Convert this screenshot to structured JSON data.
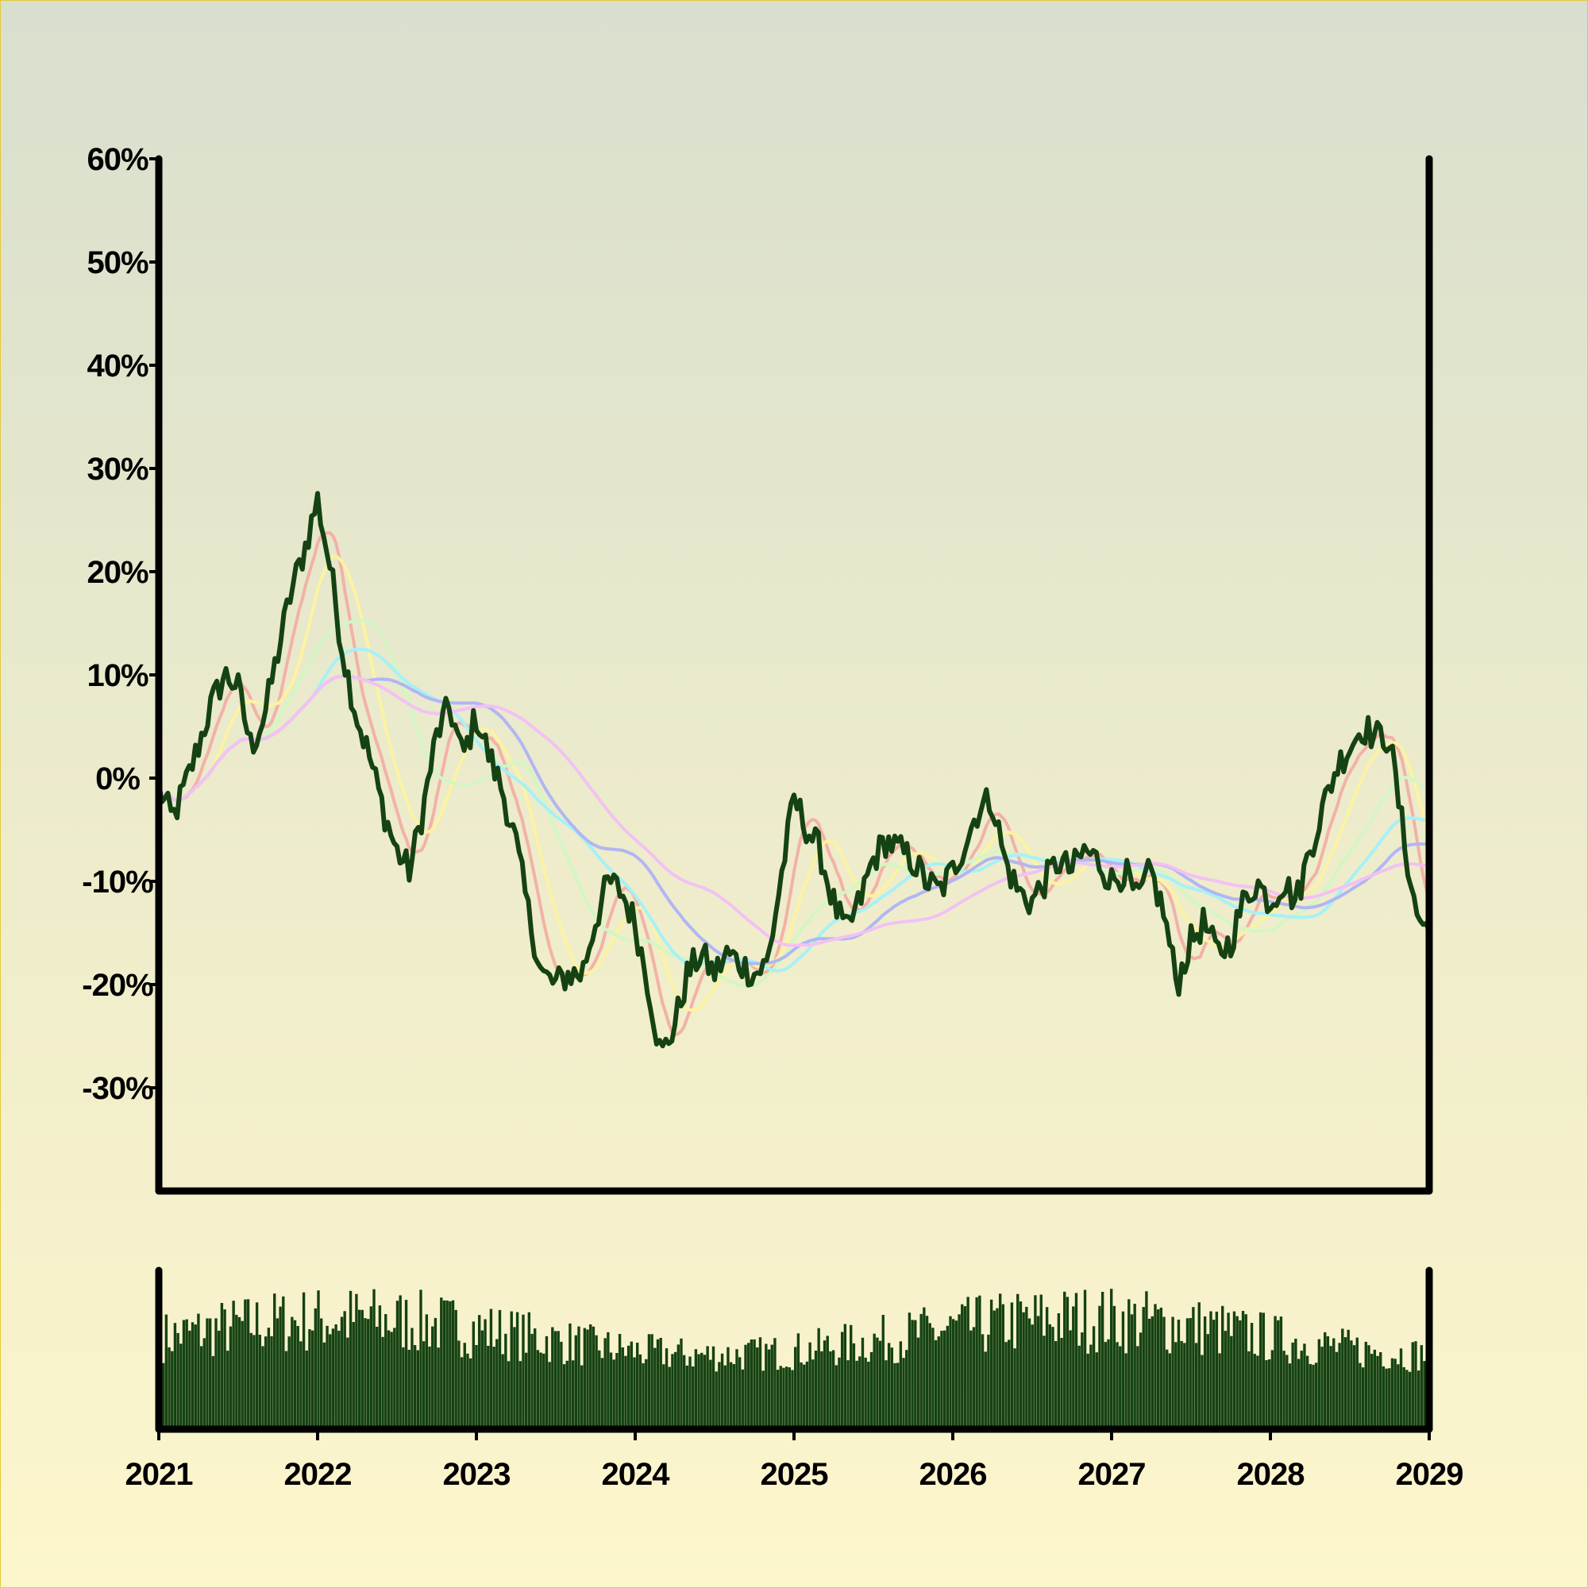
{
  "chart_data": {
    "type": "line",
    "title": "",
    "xlabel": "",
    "ylabel": "",
    "x_range": [
      "2021-01-01",
      "2029-01-01"
    ],
    "xticks": [
      "2021",
      "2022",
      "2023",
      "2024",
      "2025",
      "2026",
      "2027",
      "2028",
      "2029"
    ],
    "yticks": [
      "60%",
      "50%",
      "40%",
      "30%",
      "20%",
      "10%",
      "0%",
      "-10%",
      "-20%",
      "-30%"
    ],
    "ylim": [
      -40,
      60
    ],
    "y_unit": "%",
    "grid": false,
    "legend": "none",
    "price_series": {
      "color": "#154212",
      "points": [
        [
          "2021-01-01",
          -1
        ],
        [
          "2021-02-01",
          -4
        ],
        [
          "2021-03-01",
          -1
        ],
        [
          "2021-04-01",
          3
        ],
        [
          "2021-05-01",
          7
        ],
        [
          "2021-06-01",
          10
        ],
        [
          "2021-07-01",
          9
        ],
        [
          "2021-08-01",
          3
        ],
        [
          "2021-09-01",
          6
        ],
        [
          "2021-10-01",
          12
        ],
        [
          "2021-11-01",
          18
        ],
        [
          "2021-12-01",
          22
        ],
        [
          "2022-01-01",
          27
        ],
        [
          "2022-02-01",
          20
        ],
        [
          "2022-03-01",
          12
        ],
        [
          "2022-04-01",
          6
        ],
        [
          "2022-05-01",
          2
        ],
        [
          "2022-06-01",
          -3
        ],
        [
          "2022-07-01",
          -7
        ],
        [
          "2022-08-01",
          -9
        ],
        [
          "2022-09-01",
          -3
        ],
        [
          "2022-10-01",
          4
        ],
        [
          "2022-11-01",
          7
        ],
        [
          "2022-12-01",
          2
        ],
        [
          "2023-01-01",
          6
        ],
        [
          "2023-02-01",
          2
        ],
        [
          "2023-03-01",
          -1
        ],
        [
          "2023-04-01",
          -6
        ],
        [
          "2023-05-01",
          -13
        ],
        [
          "2023-06-01",
          -19
        ],
        [
          "2023-07-01",
          -20
        ],
        [
          "2023-08-01",
          -19
        ],
        [
          "2023-09-01",
          -19
        ],
        [
          "2023-10-01",
          -14
        ],
        [
          "2023-11-01",
          -10
        ],
        [
          "2023-12-01",
          -11
        ],
        [
          "2024-01-01",
          -14
        ],
        [
          "2024-02-01",
          -20
        ],
        [
          "2024-03-01",
          -27
        ],
        [
          "2024-04-01",
          -24
        ],
        [
          "2024-05-01",
          -19
        ],
        [
          "2024-06-01",
          -17
        ],
        [
          "2024-07-01",
          -19
        ],
        [
          "2024-08-01",
          -17
        ],
        [
          "2024-09-01",
          -18
        ],
        [
          "2024-10-01",
          -19
        ],
        [
          "2024-11-01",
          -18
        ],
        [
          "2024-12-01",
          -10
        ],
        [
          "2025-01-01",
          -2
        ],
        [
          "2025-02-01",
          -5
        ],
        [
          "2025-03-01",
          -7
        ],
        [
          "2025-04-01",
          -12
        ],
        [
          "2025-05-01",
          -15
        ],
        [
          "2025-06-01",
          -12
        ],
        [
          "2025-07-01",
          -8
        ],
        [
          "2025-08-01",
          -6
        ],
        [
          "2025-09-01",
          -7
        ],
        [
          "2025-10-01",
          -8
        ],
        [
          "2025-11-01",
          -10
        ],
        [
          "2025-12-01",
          -11
        ],
        [
          "2026-01-01",
          -9
        ],
        [
          "2026-02-01",
          -6
        ],
        [
          "2026-03-01",
          -3
        ],
        [
          "2026-04-01",
          -2
        ],
        [
          "2026-05-01",
          -8
        ],
        [
          "2026-06-01",
          -11
        ],
        [
          "2026-07-01",
          -12
        ],
        [
          "2026-08-01",
          -10
        ],
        [
          "2026-09-01",
          -8
        ],
        [
          "2026-10-01",
          -9
        ],
        [
          "2026-11-01",
          -7
        ],
        [
          "2026-12-01",
          -8
        ],
        [
          "2027-01-01",
          -10
        ],
        [
          "2027-02-01",
          -9
        ],
        [
          "2027-03-01",
          -12
        ],
        [
          "2027-04-01",
          -9
        ],
        [
          "2027-05-01",
          -13
        ],
        [
          "2027-06-01",
          -20
        ],
        [
          "2027-07-01",
          -16
        ],
        [
          "2027-08-01",
          -14
        ],
        [
          "2027-09-01",
          -17
        ],
        [
          "2027-10-01",
          -16
        ],
        [
          "2027-11-01",
          -12
        ],
        [
          "2027-12-01",
          -10
        ],
        [
          "2028-01-01",
          -12
        ],
        [
          "2028-02-01",
          -10
        ],
        [
          "2028-03-01",
          -12
        ],
        [
          "2028-04-01",
          -7
        ],
        [
          "2028-05-01",
          -3
        ],
        [
          "2028-06-01",
          1
        ],
        [
          "2028-07-01",
          3
        ],
        [
          "2028-08-01",
          5
        ],
        [
          "2028-09-01",
          4
        ],
        [
          "2028-10-01",
          4
        ],
        [
          "2028-11-01",
          -5
        ],
        [
          "2028-12-01",
          -13
        ],
        [
          "2029-01-01",
          -15
        ]
      ]
    },
    "moving_averages": [
      {
        "color": "#f3b2a6",
        "window": 2
      },
      {
        "color": "#fcf3a2",
        "window": 4
      },
      {
        "color": "#d2f7c3",
        "window": 8
      },
      {
        "color": "#a6f1f7",
        "window": 12
      },
      {
        "color": "#b1b6f3",
        "window": 16
      },
      {
        "color": "#f3c1f4",
        "window": 22
      }
    ],
    "volume_panel": {
      "color": "#154212",
      "seed": 7,
      "bars_per_year": 54,
      "level_min": 0.25,
      "level_max": 0.95
    }
  }
}
